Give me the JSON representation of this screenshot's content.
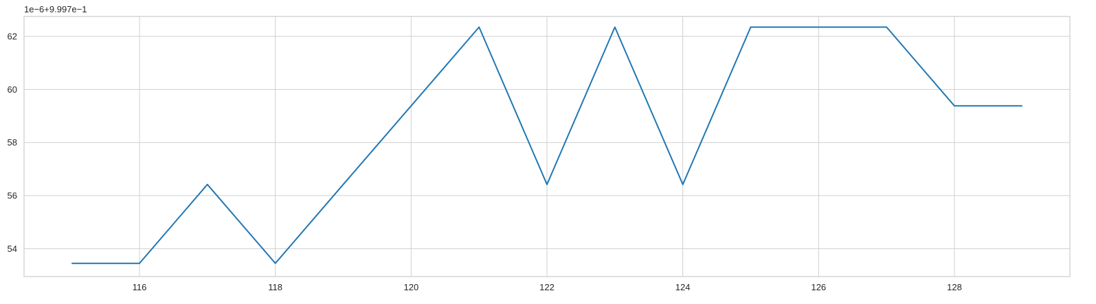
{
  "chart_data": {
    "type": "line",
    "title": "",
    "xlabel": "",
    "ylabel": "",
    "y_offset_label": "1e−6+9.997e−1",
    "xlim": [
      114.3,
      129.7
    ],
    "ylim": [
      52.95,
      62.75
    ],
    "x_ticks": [
      116,
      118,
      120,
      122,
      124,
      126,
      128
    ],
    "y_ticks": [
      54,
      56,
      58,
      60,
      62
    ],
    "grid": true,
    "series": [
      {
        "color": "#1f77b4",
        "x": [
          115,
          116,
          117,
          118,
          119,
          120,
          121,
          122,
          123,
          124,
          125,
          126,
          127,
          128,
          129
        ],
        "y": [
          53.45,
          53.45,
          56.42,
          53.45,
          56.42,
          59.38,
          62.35,
          56.42,
          62.35,
          56.42,
          62.35,
          62.35,
          62.35,
          59.38,
          59.38
        ]
      }
    ]
  }
}
